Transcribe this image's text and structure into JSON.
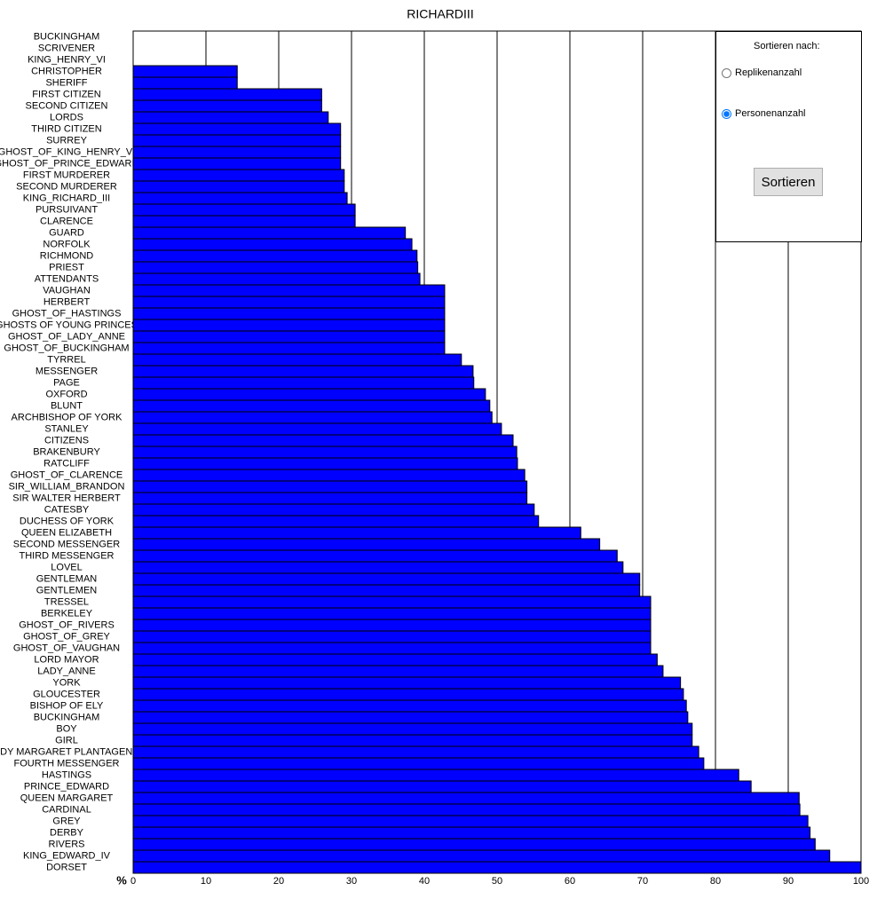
{
  "chart_data": {
    "type": "bar",
    "orientation": "horizontal",
    "title": "RICHARDIII",
    "x_label": "%",
    "categories": [
      "BUCKINGHAM",
      "SCRIVENER",
      "KING_HENRY_VI",
      "CHRISTOPHER",
      "SHERIFF",
      "FIRST CITIZEN",
      "SECOND CITIZEN",
      "LORDS",
      "THIRD CITIZEN",
      "SURREY",
      "GHOST_OF_KING_HENRY_VI",
      "GHOST_OF_PRINCE_EDWARD",
      "FIRST MURDERER",
      "SECOND MURDERER",
      "KING_RICHARD_III",
      "PURSUIVANT",
      "CLARENCE",
      "GUARD",
      "NORFOLK",
      "RICHMOND",
      "PRIEST",
      "ATTENDANTS",
      "VAUGHAN",
      "HERBERT",
      "GHOST_OF_HASTINGS",
      "GHOSTS OF YOUNG PRINCES",
      "GHOST_OF_LADY_ANNE",
      "GHOST_OF_BUCKINGHAM",
      "TYRREL",
      "MESSENGER",
      "PAGE",
      "OXFORD",
      "BLUNT",
      "ARCHBISHOP OF YORK",
      "STANLEY",
      "CITIZENS",
      "BRAKENBURY",
      "RATCLIFF",
      "GHOST_OF_CLARENCE",
      "SIR_WILLIAM_BRANDON",
      "SIR WALTER HERBERT",
      "CATESBY",
      "DUCHESS OF YORK",
      "QUEEN ELIZABETH",
      "SECOND MESSENGER",
      "THIRD MESSENGER",
      "LOVEL",
      "GENTLEMAN",
      "GENTLEMEN",
      "TRESSEL",
      "BERKELEY",
      "GHOST_OF_RIVERS",
      "GHOST_OF_GREY",
      "GHOST_OF_VAUGHAN",
      "LORD MAYOR",
      "LADY_ANNE",
      "YORK",
      "GLOUCESTER",
      "BISHOP OF ELY",
      "BUCKINGHAM",
      "BOY",
      "GIRL",
      "LADY MARGARET PLANTAGENET",
      "FOURTH MESSENGER",
      "HASTINGS",
      "PRINCE_EDWARD",
      "QUEEN MARGARET",
      "CARDINAL",
      "GREY",
      "DERBY",
      "RIVERS",
      "KING_EDWARD_IV",
      "DORSET"
    ],
    "values": [
      0,
      0,
      0,
      14.3,
      14.3,
      25.9,
      25.9,
      26.8,
      28.5,
      28.5,
      28.5,
      28.5,
      29.0,
      29.0,
      29.4,
      30.5,
      30.5,
      37.4,
      38.3,
      39.0,
      39.1,
      39.4,
      42.8,
      42.8,
      42.8,
      42.8,
      42.8,
      42.8,
      45.1,
      46.7,
      46.8,
      48.4,
      49.0,
      49.3,
      50.6,
      52.2,
      52.7,
      52.8,
      53.8,
      54.1,
      54.1,
      55.1,
      55.7,
      61.5,
      64.1,
      66.5,
      67.3,
      69.6,
      69.6,
      71.1,
      71.1,
      71.1,
      71.1,
      71.1,
      72.0,
      72.8,
      75.2,
      75.6,
      76.0,
      76.2,
      76.8,
      76.8,
      77.7,
      78.4,
      83.2,
      84.9,
      91.5,
      91.6,
      92.7,
      93.0,
      93.7,
      95.7,
      100
    ],
    "color": "#0000ff",
    "xlim": [
      0,
      100
    ],
    "xticks": [
      0,
      10,
      20,
      30,
      40,
      50,
      60,
      70,
      80,
      90,
      100
    ],
    "grid": true
  },
  "controls": {
    "heading": "Sortieren nach:",
    "options": [
      "Replikenanzahl",
      "Personenanzahl"
    ],
    "selected": 1,
    "button": "Sortieren"
  }
}
